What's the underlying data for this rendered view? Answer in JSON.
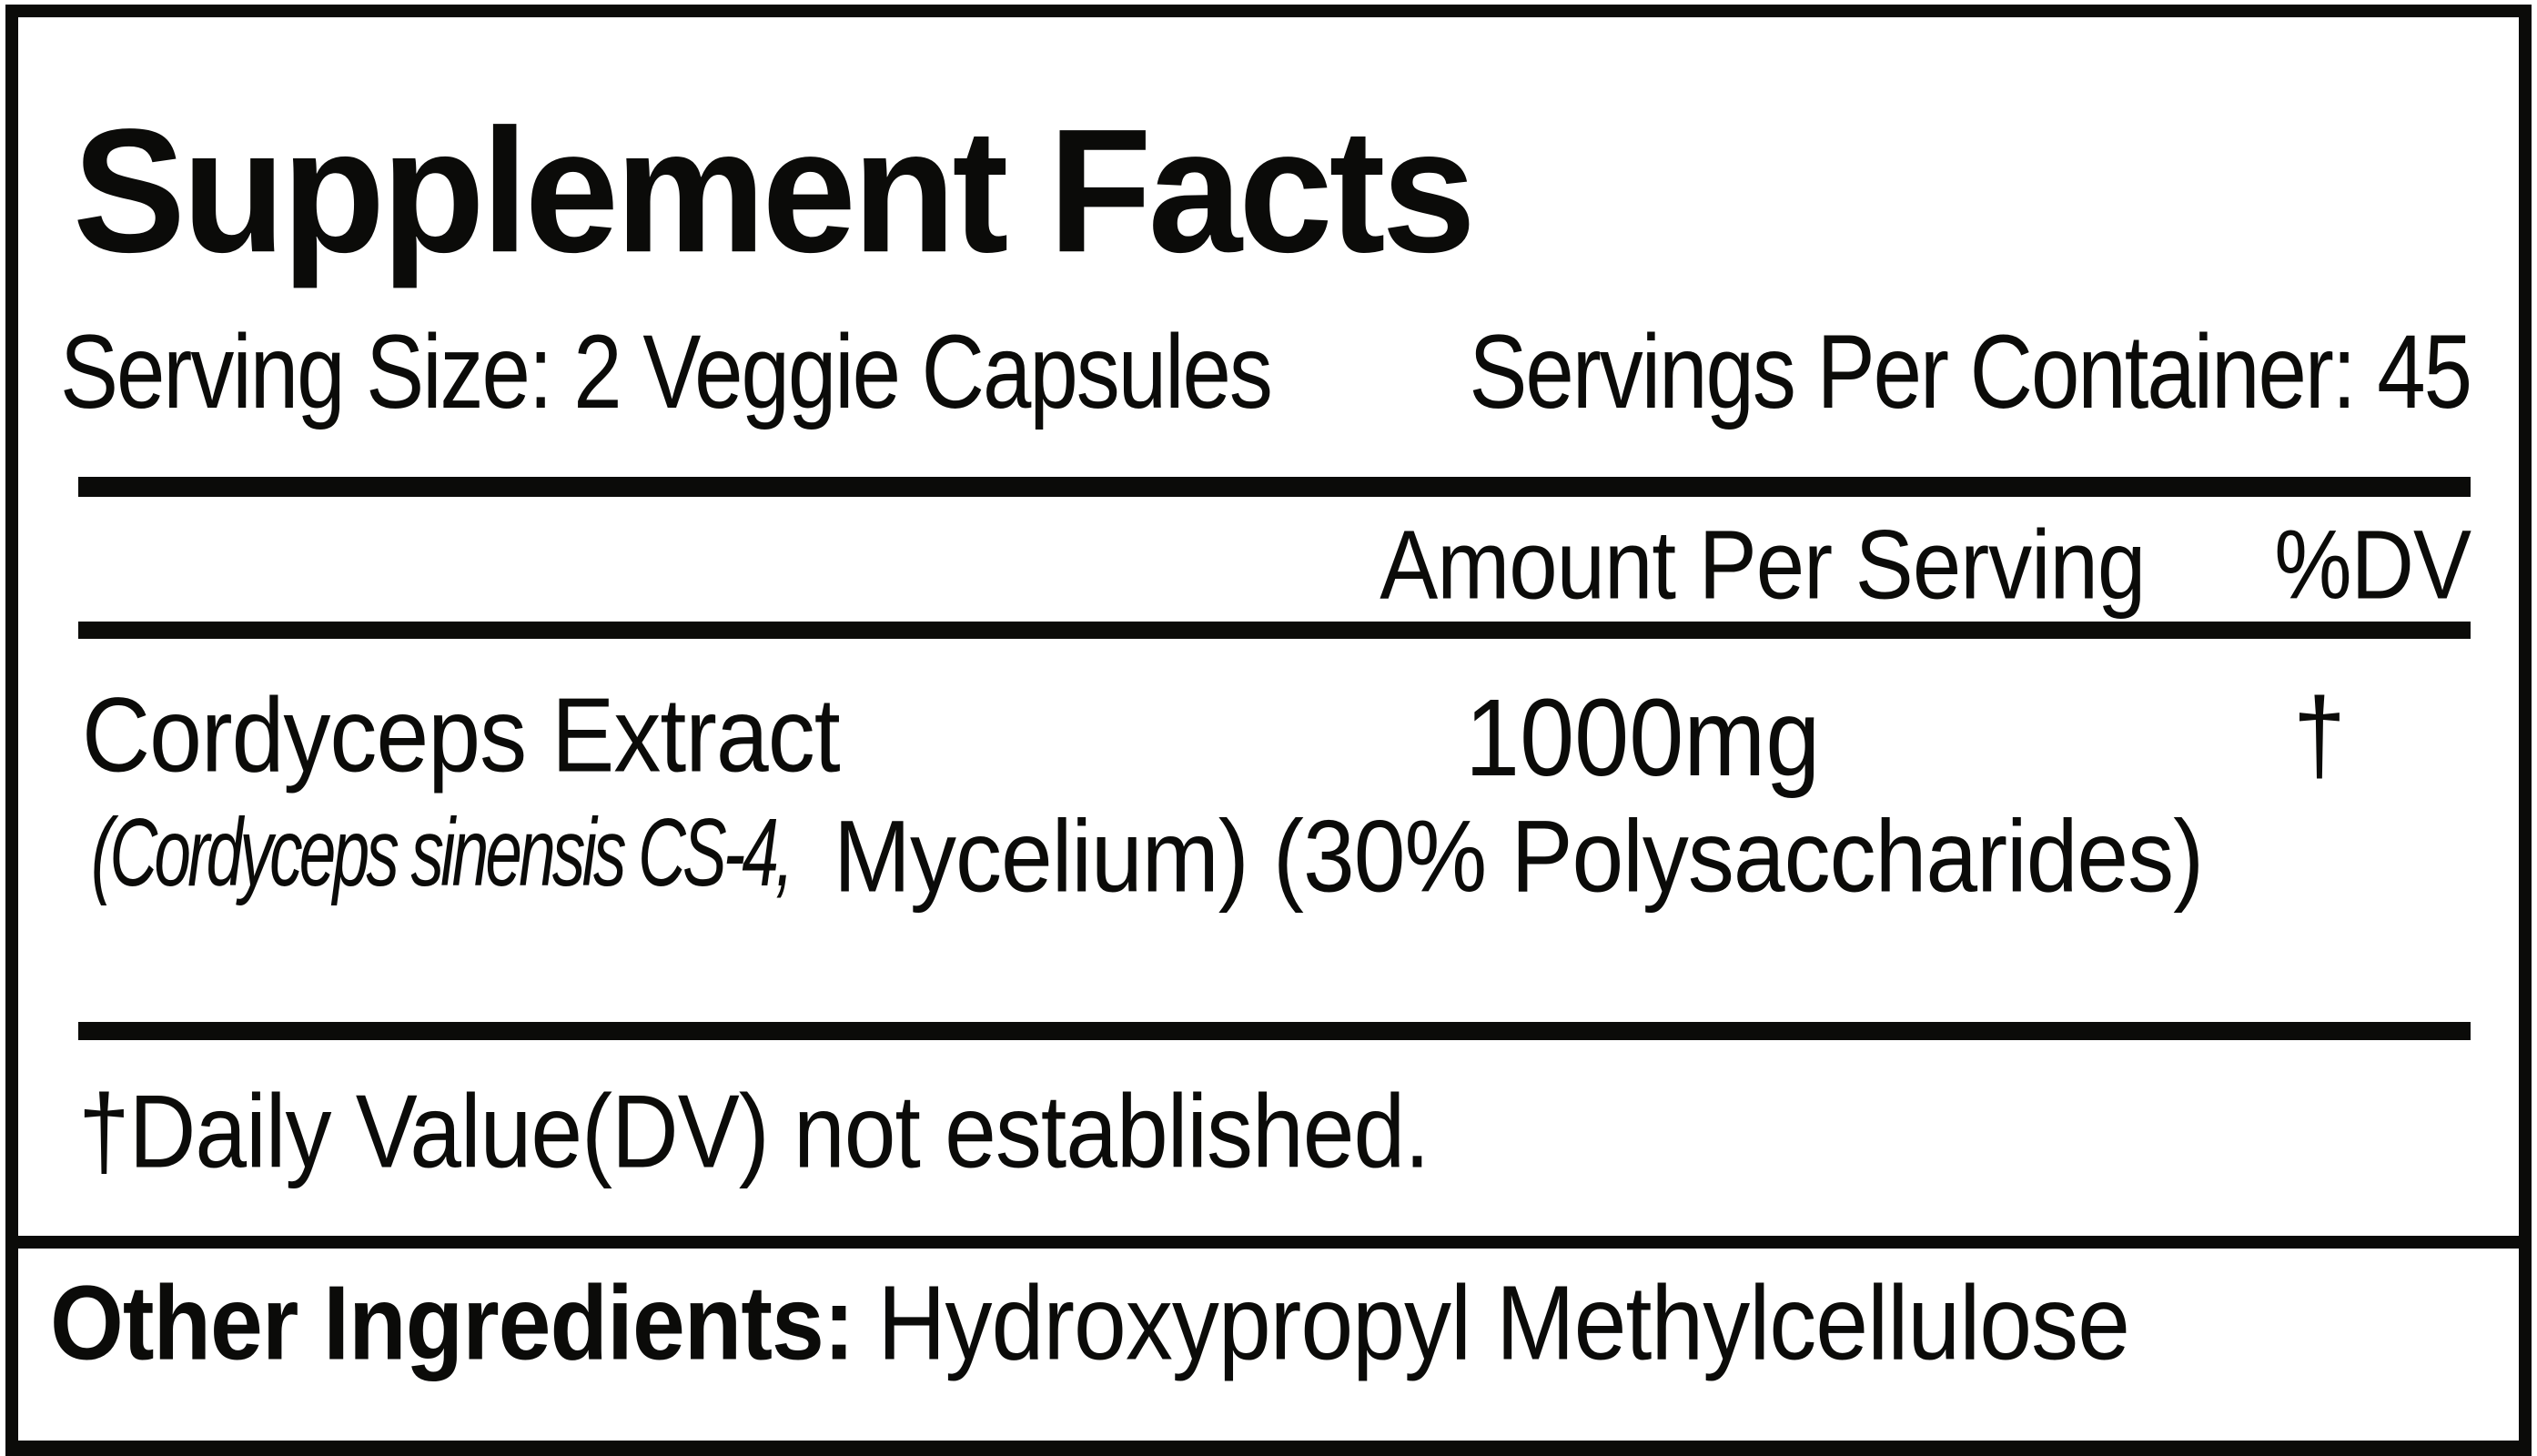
{
  "label": {
    "title": "Supplement Facts",
    "serving_size": "Serving Size: 2 Veggie Capsules",
    "servings_per_container": "Servings Per Container: 45",
    "columns": {
      "amount_header": "Amount Per Serving",
      "dv_header": "%DV"
    },
    "ingredients": [
      {
        "name": "Cordyceps Extract",
        "amount": "1000mg",
        "dv": "†",
        "detail_italic": "(Cordyceps sinensis CS-4,",
        "detail_regular": "Mycelium) (30% Polysaccharides)"
      }
    ],
    "footnote": "†Daily Value(DV) not established.",
    "other_ingredients_label": "Other Ingredients:",
    "other_ingredients_value": "Hydroxypropyl Methylcellulose",
    "colors": {
      "ink": "#0b0b09",
      "background": "#ffffff"
    }
  }
}
